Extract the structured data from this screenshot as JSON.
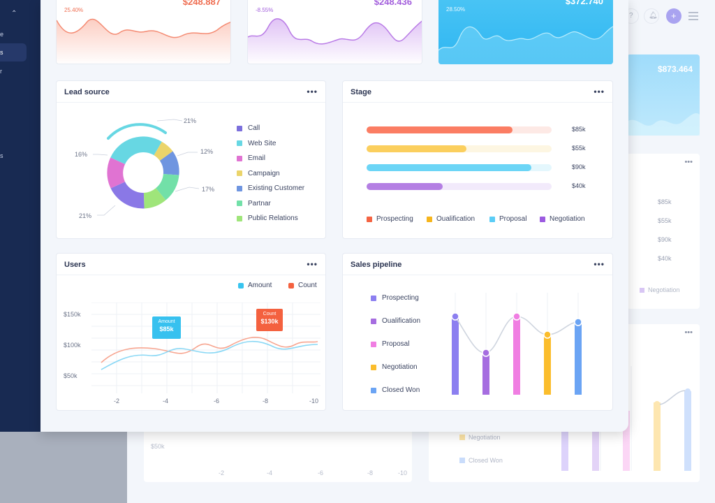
{
  "top_cards": [
    {
      "pct": "25.40%",
      "amount": "$248.887"
    },
    {
      "pct": "-8.55%",
      "amount": "$248.436"
    },
    {
      "pct": "28.50%",
      "amount": "$372.740"
    }
  ],
  "bg_card_value": "$873.464",
  "lead_source": {
    "title": "Lead source",
    "legend": [
      {
        "label": "Call",
        "color": "#7b6fdc"
      },
      {
        "label": "Web Site",
        "color": "#67d7e3"
      },
      {
        "label": "Email",
        "color": "#e073d2"
      },
      {
        "label": "Campaign",
        "color": "#ebd46a"
      },
      {
        "label": "Existing Customer",
        "color": "#6f95e0"
      },
      {
        "label": "Partnar",
        "color": "#72e0a8"
      },
      {
        "label": "Public Relations",
        "color": "#9fe57a"
      }
    ],
    "labels": {
      "top": "21%",
      "right1": "12%",
      "right2": "17%",
      "left1": "16%",
      "left2": "21%"
    }
  },
  "stage": {
    "title": "Stage",
    "bars": [
      {
        "name": "Prospecting",
        "fraction": 0.79,
        "value": "$85k",
        "color": "#fb7d63",
        "track": "#fde9e5"
      },
      {
        "name": "Oualification",
        "fraction": 0.54,
        "value": "$55k",
        "color": "#fbcf5e",
        "track": "#fdf6e2"
      },
      {
        "name": "Proposal",
        "fraction": 0.89,
        "value": "$90k",
        "color": "#6cd5f6",
        "track": "#e4f7fd"
      },
      {
        "name": "Negotiation",
        "fraction": 0.41,
        "value": "$40k",
        "color": "#b47fe3",
        "track": "#f2eafb"
      }
    ],
    "legend_colors": [
      "#f46443",
      "#f6b51c",
      "#5bcdf6",
      "#9c5be0"
    ]
  },
  "users": {
    "title": "Users",
    "legend": [
      {
        "label": "Amount",
        "color": "#38c4ef"
      },
      {
        "label": "Count",
        "color": "#f4613f"
      }
    ],
    "y_ticks": [
      "$150k",
      "$100k",
      "$50k"
    ],
    "x_ticks": [
      "-2",
      "-4",
      "-6",
      "-8",
      "-10"
    ],
    "tooltips": {
      "amount": {
        "label": "Amount",
        "value": "$85k"
      },
      "count": {
        "label": "Count",
        "value": "$130k"
      }
    }
  },
  "sales_pipeline": {
    "title": "Sales pipeline",
    "legend": [
      {
        "label": "Prospecting",
        "color": "#8c7ff0"
      },
      {
        "label": "Oualification",
        "color": "#a66de0"
      },
      {
        "label": "Proposal",
        "color": "#f07ee2"
      },
      {
        "label": "Negotiation",
        "color": "#fbbd2c"
      },
      {
        "label": "Closed Won",
        "color": "#6ba4f4"
      }
    ]
  },
  "background": {
    "stage_values": [
      "$85k",
      "$55k",
      "$90k",
      "$40k"
    ],
    "stage_legend": "Negotiation",
    "pipeline_legend": [
      "Negotiation",
      "Closed Won"
    ],
    "users_y_tick": "$50k",
    "users_x_ticks": [
      "-2",
      "-4",
      "-6",
      "-8",
      "-10"
    ]
  },
  "sidebar_items": [
    "e",
    "s",
    "r",
    "s"
  ]
}
